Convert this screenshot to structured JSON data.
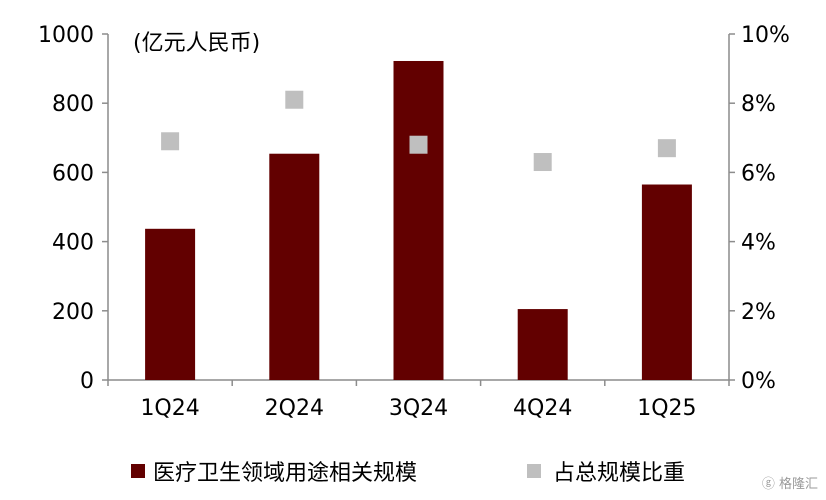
{
  "chart_data": {
    "type": "bar",
    "unit_label": "(亿元人民币)",
    "categories": [
      "1Q24",
      "2Q24",
      "3Q24",
      "4Q24",
      "1Q25"
    ],
    "series": [
      {
        "name": "医疗卫生领域用途相关规模",
        "type": "bar",
        "axis": "left",
        "color": "#620000",
        "values": [
          437,
          654,
          922,
          205,
          565
        ]
      },
      {
        "name": "占总规模比重",
        "type": "scatter",
        "marker": "square",
        "axis": "right",
        "color": "#bfbfbf",
        "values": [
          6.9,
          8.1,
          6.8,
          6.3,
          6.7
        ]
      }
    ],
    "y_left": {
      "ylim": [
        0,
        1000
      ],
      "ticks": [
        "0",
        "200",
        "400",
        "600",
        "800",
        "1000"
      ]
    },
    "y_right": {
      "ylim": [
        0,
        10
      ],
      "ticks": [
        "0%",
        "2%",
        "4%",
        "6%",
        "8%",
        "10%"
      ]
    },
    "grid": false,
    "legend_position": "bottom"
  },
  "watermark": {
    "text": "格隆汇"
  }
}
